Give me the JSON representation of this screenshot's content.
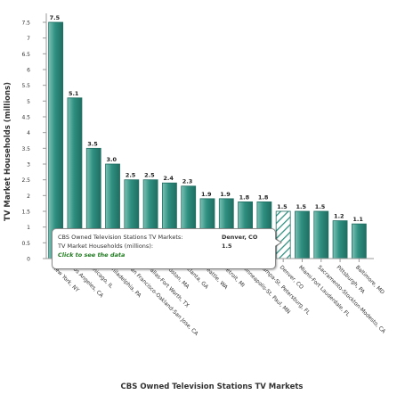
{
  "chart_data": {
    "type": "bar",
    "title": "",
    "xlabel": "CBS Owned Television Stations TV Markets",
    "ylabel": "TV Market Households (millions)",
    "ylim": [
      0,
      7.5
    ],
    "yticks": [
      "0",
      "0.5",
      "1",
      "1.5",
      "2",
      "2.5",
      "3",
      "3.5",
      "4",
      "4.5",
      "5",
      "5.5",
      "6",
      "6.5",
      "7",
      "7.5"
    ],
    "grid": false,
    "categories": [
      "New York, NY",
      "Los Angeles, CA",
      "Chicago, IL",
      "Philadelphia, PA",
      "San Francisco-Oakland-San Jose, CA",
      "Dallas-Fort Worth, TX",
      "Boston, MA",
      "Atlanta, GA",
      "Seattle, WA",
      "Detroit, MI",
      "Minneapolis-St. Paul, MN",
      "Tampa-St. Petersburg, FL",
      "Denver, CO",
      "Miami-Fort Lauderdale, FL",
      "Sacramento-Stockton-Modesto, CA",
      "Pittsburgh, PA",
      "Baltimore, MD"
    ],
    "values": [
      7.5,
      5.1,
      3.5,
      3.0,
      2.5,
      2.5,
      2.4,
      2.3,
      1.9,
      1.9,
      1.8,
      1.8,
      1.5,
      1.5,
      1.5,
      1.2,
      1.1
    ],
    "value_labels": [
      "7.5",
      "5.1",
      "3.5",
      "3.0",
      "2.5",
      "2.5",
      "2.4",
      "2.3",
      "1.9",
      "1.9",
      "1.8",
      "1.8",
      "1.5",
      "1.5",
      "1.5",
      "1.2",
      "1.1"
    ],
    "highlighted_category": "Denver, CO",
    "colors": {
      "bar": "#2e8f80",
      "bar_light": "#7cc2b6",
      "bar_dark": "#1f6e62",
      "hatch": "#2e8f80"
    }
  },
  "tooltip": {
    "series_label": "CBS Owned Television Stations TV Markets:",
    "series_value": "Denver, CO",
    "measure_label": "TV Market Households (millions):",
    "measure_value": "1.5",
    "link_label": "Click to see the data"
  }
}
